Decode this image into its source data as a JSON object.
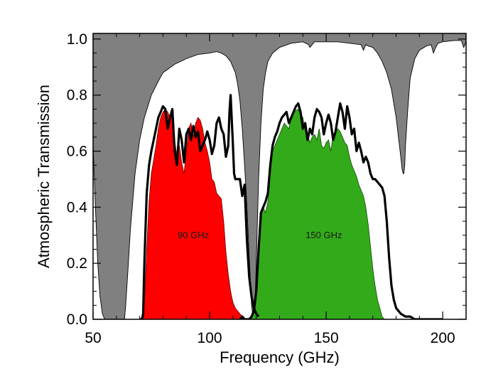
{
  "chart_data": {
    "type": "area",
    "xlabel": "Frequency (GHz)",
    "ylabel": "Atmospheric Transmission",
    "xlim": [
      50,
      210
    ],
    "ylim": [
      0,
      1.02
    ],
    "xticks": [
      50,
      100,
      150,
      200
    ],
    "yticks": [
      0.0,
      0.2,
      0.4,
      0.6,
      0.8,
      1.0
    ],
    "xtick_labels": [
      "50",
      "100",
      "150",
      "200"
    ],
    "ytick_labels": [
      "0.0",
      "0.2",
      "0.4",
      "0.6",
      "0.8",
      "1.0"
    ],
    "grid": false,
    "colors": {
      "atmosphere_fill": "#808080",
      "band_90_fill": "#ff0000",
      "band_150_fill": "#33aa1a",
      "outline": "#000000"
    },
    "annotations": [
      {
        "text": "90 GHz",
        "x": 93,
        "y": 0.3
      },
      {
        "text": "150 GHz",
        "x": 149,
        "y": 0.3
      }
    ],
    "series": [
      {
        "x": [
          50,
          51,
          52,
          53,
          54,
          55,
          56,
          58,
          60,
          62,
          63.5,
          64,
          65,
          66,
          67,
          68,
          70,
          72,
          75,
          78,
          80,
          85,
          90,
          95,
          100,
          103,
          105,
          107,
          109,
          111,
          112,
          113,
          114,
          115,
          116,
          117,
          118,
          118.7,
          119.5,
          120,
          121,
          122,
          123,
          124,
          125,
          127,
          130,
          135,
          140,
          142.5,
          143,
          145,
          150,
          155,
          160,
          165,
          166,
          167,
          168,
          170,
          172,
          174,
          176,
          178,
          180,
          181,
          182,
          182.5,
          183,
          183.3,
          183.7,
          184,
          185,
          186,
          188,
          190,
          193,
          195,
          196,
          197,
          198,
          200,
          205,
          208,
          209,
          210
        ],
        "values": [
          0.62,
          0.4,
          0.2,
          0.08,
          0.02,
          0.0,
          0.0,
          0.0,
          0.0,
          0.0,
          0.0,
          0.05,
          0.18,
          0.32,
          0.42,
          0.52,
          0.64,
          0.72,
          0.8,
          0.85,
          0.88,
          0.91,
          0.93,
          0.945,
          0.95,
          0.955,
          0.95,
          0.94,
          0.92,
          0.88,
          0.84,
          0.78,
          0.68,
          0.55,
          0.4,
          0.22,
          0.05,
          0.0,
          0.05,
          0.2,
          0.5,
          0.7,
          0.82,
          0.88,
          0.92,
          0.95,
          0.97,
          0.985,
          0.99,
          0.98,
          0.97,
          0.99,
          0.99,
          0.99,
          0.985,
          0.98,
          0.96,
          0.98,
          0.975,
          0.97,
          0.95,
          0.92,
          0.88,
          0.82,
          0.72,
          0.65,
          0.58,
          0.54,
          0.52,
          0.52,
          0.55,
          0.62,
          0.75,
          0.86,
          0.93,
          0.96,
          0.975,
          0.98,
          0.95,
          0.97,
          0.985,
          0.99,
          0.995,
          0.995,
          0.97,
          0.99
        ]
      },
      {
        "x": [
          70,
          71.5,
          72,
          73,
          74,
          75,
          76,
          77,
          78,
          79,
          80,
          81,
          82,
          83,
          84,
          85,
          86,
          87,
          88,
          89,
          90,
          91,
          92,
          93,
          94,
          95,
          96,
          97,
          98,
          99,
          100,
          101,
          102,
          103,
          104,
          105,
          106,
          107,
          108,
          109,
          110,
          111,
          112,
          113,
          114,
          115,
          116
        ],
        "values": [
          0.0,
          0.0,
          0.05,
          0.25,
          0.42,
          0.52,
          0.57,
          0.62,
          0.68,
          0.72,
          0.74,
          0.75,
          0.74,
          0.72,
          0.73,
          0.64,
          0.58,
          0.62,
          0.56,
          0.52,
          0.6,
          0.68,
          0.7,
          0.65,
          0.7,
          0.72,
          0.71,
          0.68,
          0.63,
          0.6,
          0.56,
          0.5,
          0.49,
          0.45,
          0.44,
          0.43,
          0.35,
          0.24,
          0.16,
          0.1,
          0.06,
          0.04,
          0.03,
          0.02,
          0.01,
          0.0,
          0.0
        ]
      },
      {
        "x": [
          116,
          118,
          119,
          120,
          121,
          122,
          123,
          124,
          125,
          126,
          127,
          128,
          129,
          130,
          131,
          132,
          133,
          134,
          135,
          136,
          137,
          138,
          139,
          140,
          141,
          142,
          143,
          144,
          145,
          146,
          147,
          148,
          149,
          150,
          151,
          152,
          153,
          154,
          155,
          156,
          157,
          158,
          159,
          160,
          161,
          162,
          163,
          164,
          165,
          166,
          167,
          168,
          169,
          170,
          171,
          172,
          173,
          174,
          175
        ],
        "values": [
          0.0,
          0.01,
          0.03,
          0.12,
          0.28,
          0.38,
          0.4,
          0.38,
          0.42,
          0.52,
          0.6,
          0.62,
          0.64,
          0.66,
          0.68,
          0.7,
          0.69,
          0.68,
          0.72,
          0.74,
          0.745,
          0.75,
          0.73,
          0.72,
          0.67,
          0.66,
          0.63,
          0.65,
          0.66,
          0.64,
          0.68,
          0.62,
          0.61,
          0.63,
          0.64,
          0.6,
          0.66,
          0.67,
          0.68,
          0.67,
          0.65,
          0.63,
          0.62,
          0.58,
          0.55,
          0.53,
          0.51,
          0.48,
          0.46,
          0.44,
          0.4,
          0.34,
          0.26,
          0.18,
          0.12,
          0.07,
          0.04,
          0.01,
          0.0
        ]
      },
      {
        "x": [
          70,
          71,
          71.5,
          72,
          73,
          74,
          75,
          76,
          77,
          78,
          79,
          80,
          81,
          82,
          83,
          84,
          85,
          86,
          87,
          88,
          89,
          90,
          91,
          92,
          93,
          94,
          95,
          96,
          97,
          98,
          99,
          100,
          101,
          102,
          103,
          104,
          105,
          106,
          107,
          108,
          108.5,
          109,
          110,
          110.5,
          111,
          112,
          113,
          114,
          115,
          115.5,
          116,
          117,
          118,
          119,
          120,
          121
        ],
        "values": [
          0.0,
          0.0,
          0.02,
          0.2,
          0.45,
          0.55,
          0.6,
          0.64,
          0.68,
          0.72,
          0.74,
          0.76,
          0.75,
          0.68,
          0.72,
          0.75,
          0.6,
          0.55,
          0.68,
          0.64,
          0.56,
          0.66,
          0.68,
          0.64,
          0.69,
          0.65,
          0.67,
          0.6,
          0.62,
          0.64,
          0.67,
          0.64,
          0.59,
          0.62,
          0.7,
          0.72,
          0.68,
          0.66,
          0.58,
          0.62,
          0.74,
          0.8,
          0.62,
          0.52,
          0.5,
          0.5,
          0.5,
          0.44,
          0.48,
          0.38,
          0.28,
          0.15,
          0.08,
          0.04,
          0.02,
          0.01
        ]
      },
      {
        "x": [
          113,
          114,
          115,
          116,
          117,
          118,
          119,
          120,
          121,
          122,
          123,
          124,
          125,
          126,
          127,
          128,
          129,
          130,
          131,
          132,
          133,
          134,
          135,
          136,
          137,
          138,
          139,
          140,
          141,
          142,
          143,
          144,
          145,
          146,
          147,
          148,
          149,
          150,
          151,
          152,
          153,
          154,
          155,
          156,
          157,
          158,
          159,
          160,
          161,
          162,
          163,
          164,
          165,
          166,
          167,
          168,
          169,
          170,
          171,
          172,
          173,
          174,
          175,
          176,
          177,
          178,
          179,
          180,
          182,
          184,
          186,
          188,
          190,
          195,
          200
        ],
        "values": [
          0.0,
          0.01,
          0.0,
          0.0,
          0.0,
          0.01,
          0.03,
          0.1,
          0.25,
          0.38,
          0.4,
          0.42,
          0.45,
          0.55,
          0.62,
          0.65,
          0.67,
          0.7,
          0.72,
          0.73,
          0.74,
          0.7,
          0.72,
          0.74,
          0.76,
          0.77,
          0.74,
          0.68,
          0.7,
          0.64,
          0.68,
          0.66,
          0.72,
          0.75,
          0.74,
          0.72,
          0.66,
          0.7,
          0.73,
          0.7,
          0.64,
          0.67,
          0.72,
          0.77,
          0.74,
          0.68,
          0.76,
          0.72,
          0.66,
          0.68,
          0.6,
          0.63,
          0.6,
          0.56,
          0.58,
          0.56,
          0.52,
          0.5,
          0.5,
          0.49,
          0.48,
          0.47,
          0.44,
          0.35,
          0.22,
          0.12,
          0.07,
          0.04,
          0.02,
          0.01,
          0.01,
          0.0,
          0.0,
          0.0,
          0.0
        ]
      }
    ]
  }
}
